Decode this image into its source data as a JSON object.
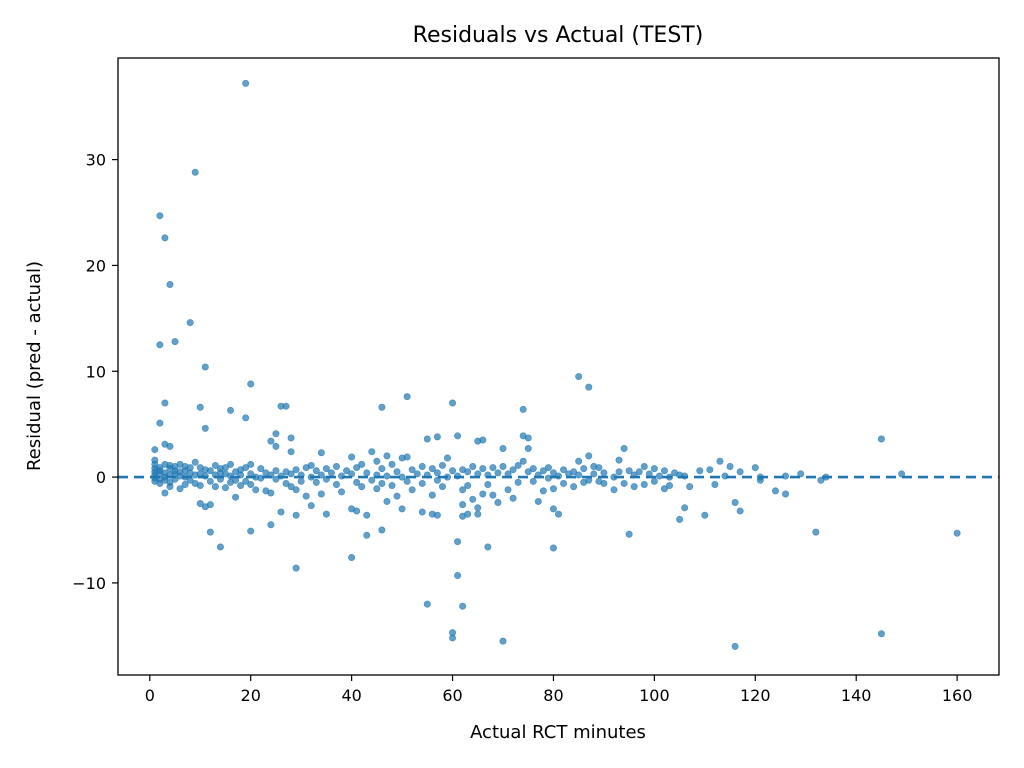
{
  "chart_data": {
    "type": "scatter",
    "title": "Residuals vs Actual (TEST)",
    "xlabel": "Actual RCT minutes",
    "ylabel": "Residual (pred - actual)",
    "xlim": [
      -6.3,
      168.3
    ],
    "ylim": [
      -18.7,
      39.6
    ],
    "xticks": [
      0,
      20,
      40,
      60,
      80,
      100,
      120,
      140,
      160
    ],
    "xtick_labels": [
      "0",
      "20",
      "40",
      "60",
      "80",
      "100",
      "120",
      "140",
      "160"
    ],
    "yticks": [
      -10,
      0,
      10,
      20,
      30
    ],
    "ytick_labels": [
      "−10",
      "0",
      "10",
      "20",
      "30"
    ],
    "grid": false,
    "reference_line": {
      "y": 0,
      "style": "dashed"
    },
    "colors": {
      "points": "#1f77b4",
      "reference_line": "#1f77b4"
    },
    "series": [
      {
        "points": [
          [
            1,
            1.2
          ],
          [
            1,
            0.8
          ],
          [
            1,
            0.5
          ],
          [
            1,
            0.2
          ],
          [
            1,
            -0.1
          ],
          [
            1,
            -0.4
          ],
          [
            1,
            2.6
          ],
          [
            1,
            1.6
          ],
          [
            2,
            0.9
          ],
          [
            2,
            0.3
          ],
          [
            2,
            -0.2
          ],
          [
            2,
            0.6
          ],
          [
            2,
            -0.6
          ],
          [
            2,
            12.5
          ],
          [
            2,
            24.7
          ],
          [
            2,
            5.1
          ],
          [
            3,
            22.6
          ],
          [
            3,
            7.0
          ],
          [
            3,
            3.1
          ],
          [
            3,
            0.4
          ],
          [
            3,
            -0.3
          ],
          [
            3,
            1.2
          ],
          [
            3,
            -1.5
          ],
          [
            3,
            0.0
          ],
          [
            4,
            18.2
          ],
          [
            4,
            2.9
          ],
          [
            4,
            0.8
          ],
          [
            4,
            -0.5
          ],
          [
            4,
            0.2
          ],
          [
            4,
            1.1
          ],
          [
            4,
            -0.9
          ],
          [
            5,
            12.8
          ],
          [
            5,
            0.3
          ],
          [
            5,
            1.0
          ],
          [
            5,
            -0.2
          ],
          [
            5,
            0.6
          ],
          [
            6,
            0.5
          ],
          [
            6,
            -1.1
          ],
          [
            6,
            0.1
          ],
          [
            6,
            1.2
          ],
          [
            7,
            0.0
          ],
          [
            7,
            -0.7
          ],
          [
            7,
            0.6
          ],
          [
            7,
            1.0
          ],
          [
            8,
            14.6
          ],
          [
            8,
            0.4
          ],
          [
            8,
            -0.3
          ],
          [
            8,
            0.9
          ],
          [
            9,
            28.8
          ],
          [
            9,
            1.4
          ],
          [
            9,
            -0.6
          ],
          [
            9,
            0.2
          ],
          [
            10,
            6.6
          ],
          [
            10,
            -2.5
          ],
          [
            10,
            0.3
          ],
          [
            10,
            -0.8
          ],
          [
            10,
            0.9
          ],
          [
            11,
            10.4
          ],
          [
            11,
            4.6
          ],
          [
            11,
            -2.8
          ],
          [
            11,
            0.1
          ],
          [
            11,
            0.7
          ],
          [
            12,
            -5.2
          ],
          [
            12,
            -2.6
          ],
          [
            12,
            -0.4
          ],
          [
            12,
            0.6
          ],
          [
            13,
            0.2
          ],
          [
            13,
            -0.9
          ],
          [
            13,
            1.1
          ],
          [
            14,
            -6.6
          ],
          [
            14,
            0.4
          ],
          [
            14,
            -0.2
          ],
          [
            14,
            0.8
          ],
          [
            15,
            -1.0
          ],
          [
            15,
            0.3
          ],
          [
            15,
            0.9
          ],
          [
            16,
            6.3
          ],
          [
            16,
            1.2
          ],
          [
            16,
            -0.5
          ],
          [
            16,
            0.1
          ],
          [
            17,
            -1.9
          ],
          [
            17,
            0.5
          ],
          [
            17,
            -0.3
          ],
          [
            18,
            0.7
          ],
          [
            18,
            -0.8
          ],
          [
            18,
            0.2
          ],
          [
            19,
            37.2
          ],
          [
            19,
            5.6
          ],
          [
            19,
            0.9
          ],
          [
            19,
            -0.4
          ],
          [
            20,
            8.8
          ],
          [
            20,
            1.2
          ],
          [
            20,
            -5.1
          ],
          [
            20,
            0.3
          ],
          [
            20,
            -0.7
          ],
          [
            21,
            0.0
          ],
          [
            21,
            -1.2
          ],
          [
            22,
            0.8
          ],
          [
            22,
            -0.1
          ],
          [
            23,
            0.4
          ],
          [
            23,
            -1.3
          ],
          [
            24,
            3.4
          ],
          [
            24,
            -4.5
          ],
          [
            24,
            -1.5
          ],
          [
            24,
            0.2
          ],
          [
            25,
            4.1
          ],
          [
            25,
            2.9
          ],
          [
            25,
            0.6
          ],
          [
            25,
            -0.2
          ],
          [
            26,
            6.7
          ],
          [
            26,
            -3.3
          ],
          [
            26,
            0.1
          ],
          [
            27,
            6.7
          ],
          [
            27,
            0.5
          ],
          [
            27,
            -0.6
          ],
          [
            28,
            3.7
          ],
          [
            28,
            2.4
          ],
          [
            28,
            -0.9
          ],
          [
            28,
            0.3
          ],
          [
            29,
            -8.6
          ],
          [
            29,
            -3.6
          ],
          [
            29,
            -1.2
          ],
          [
            29,
            0.7
          ],
          [
            30,
            0.2
          ],
          [
            30,
            -0.4
          ],
          [
            31,
            0.9
          ],
          [
            31,
            -1.8
          ],
          [
            32,
            1.1
          ],
          [
            32,
            -2.7
          ],
          [
            32,
            0.0
          ],
          [
            33,
            -0.5
          ],
          [
            33,
            0.6
          ],
          [
            34,
            2.3
          ],
          [
            34,
            -1.6
          ],
          [
            34,
            0.2
          ],
          [
            35,
            -3.5
          ],
          [
            35,
            0.8
          ],
          [
            35,
            -0.2
          ],
          [
            36,
            0.4
          ],
          [
            37,
            1.0
          ],
          [
            37,
            -0.7
          ],
          [
            38,
            0.1
          ],
          [
            38,
            -1.4
          ],
          [
            39,
            0.6
          ],
          [
            40,
            -3.0
          ],
          [
            40,
            -7.6
          ],
          [
            40,
            1.9
          ],
          [
            40,
            0.3
          ],
          [
            41,
            -3.2
          ],
          [
            41,
            0.9
          ],
          [
            41,
            -0.5
          ],
          [
            42,
            1.2
          ],
          [
            42,
            -0.9
          ],
          [
            43,
            -3.6
          ],
          [
            43,
            -5.5
          ],
          [
            43,
            0.4
          ],
          [
            44,
            2.4
          ],
          [
            44,
            -0.3
          ],
          [
            45,
            1.5
          ],
          [
            45,
            0.2
          ],
          [
            45,
            -1.1
          ],
          [
            46,
            6.6
          ],
          [
            46,
            -5.0
          ],
          [
            46,
            0.8
          ],
          [
            46,
            -0.6
          ],
          [
            47,
            2.0
          ],
          [
            47,
            0.1
          ],
          [
            47,
            -2.3
          ],
          [
            48,
            1.2
          ],
          [
            48,
            -0.8
          ],
          [
            49,
            -1.8
          ],
          [
            49,
            0.5
          ],
          [
            50,
            -3.0
          ],
          [
            50,
            1.8
          ],
          [
            50,
            0.0
          ],
          [
            51,
            7.6
          ],
          [
            51,
            1.9
          ],
          [
            51,
            -0.4
          ],
          [
            52,
            0.7
          ],
          [
            52,
            -1.2
          ],
          [
            53,
            0.3
          ],
          [
            54,
            -3.3
          ],
          [
            54,
            1.0
          ],
          [
            54,
            -0.6
          ],
          [
            55,
            3.6
          ],
          [
            55,
            -12.0
          ],
          [
            55,
            0.2
          ],
          [
            56,
            -3.5
          ],
          [
            56,
            0.8
          ],
          [
            56,
            -1.7
          ],
          [
            57,
            3.8
          ],
          [
            57,
            -3.6
          ],
          [
            57,
            0.4
          ],
          [
            57,
            -0.3
          ],
          [
            58,
            1.1
          ],
          [
            58,
            -0.9
          ],
          [
            59,
            1.8
          ],
          [
            59,
            0.0
          ],
          [
            60,
            7.0
          ],
          [
            60,
            -14.7
          ],
          [
            60,
            -15.2
          ],
          [
            60,
            0.6
          ],
          [
            61,
            3.9
          ],
          [
            61,
            -6.1
          ],
          [
            61,
            -9.3
          ],
          [
            61,
            0.1
          ],
          [
            62,
            -12.2
          ],
          [
            62,
            -3.7
          ],
          [
            62,
            -2.6
          ],
          [
            62,
            0.7
          ],
          [
            62,
            -1.2
          ],
          [
            63,
            -3.5
          ],
          [
            63,
            0.5
          ],
          [
            63,
            -0.8
          ],
          [
            64,
            -2.1
          ],
          [
            64,
            1.0
          ],
          [
            65,
            3.4
          ],
          [
            65,
            -2.9
          ],
          [
            65,
            -3.5
          ],
          [
            65,
            0.3
          ],
          [
            66,
            3.5
          ],
          [
            66,
            -1.6
          ],
          [
            66,
            0.8
          ],
          [
            67,
            -6.6
          ],
          [
            67,
            0.2
          ],
          [
            67,
            -0.7
          ],
          [
            68,
            -1.7
          ],
          [
            68,
            0.9
          ],
          [
            69,
            -2.4
          ],
          [
            69,
            0.4
          ],
          [
            70,
            -15.5
          ],
          [
            70,
            2.7
          ],
          [
            70,
            1.0
          ],
          [
            71,
            -1.2
          ],
          [
            71,
            0.3
          ],
          [
            72,
            -2.0
          ],
          [
            72,
            0.7
          ],
          [
            73,
            -0.5
          ],
          [
            73,
            1.1
          ],
          [
            74,
            6.4
          ],
          [
            74,
            3.9
          ],
          [
            74,
            1.5
          ],
          [
            75,
            3.7
          ],
          [
            75,
            2.7
          ],
          [
            75,
            0.5
          ],
          [
            76,
            0.8
          ],
          [
            76,
            -0.4
          ],
          [
            77,
            -2.3
          ],
          [
            77,
            0.2
          ],
          [
            78,
            -1.3
          ],
          [
            78,
            0.6
          ],
          [
            79,
            -0.1
          ],
          [
            79,
            0.9
          ],
          [
            80,
            -6.7
          ],
          [
            80,
            -3.0
          ],
          [
            80,
            -1.1
          ],
          [
            80,
            0.4
          ],
          [
            81,
            -3.5
          ],
          [
            81,
            0.1
          ],
          [
            82,
            0.7
          ],
          [
            82,
            -0.6
          ],
          [
            83,
            0.3
          ],
          [
            84,
            0.5
          ],
          [
            84,
            -0.9
          ],
          [
            85,
            9.5
          ],
          [
            85,
            1.5
          ],
          [
            85,
            0.2
          ],
          [
            86,
            0.8
          ],
          [
            86,
            -0.5
          ],
          [
            87,
            8.5
          ],
          [
            87,
            2.0
          ],
          [
            87,
            -0.3
          ],
          [
            88,
            1.0
          ],
          [
            88,
            0.3
          ],
          [
            89,
            -0.4
          ],
          [
            89,
            0.9
          ],
          [
            90,
            -0.6
          ],
          [
            90,
            0.4
          ],
          [
            92,
            0.0
          ],
          [
            92,
            -1.2
          ],
          [
            93,
            1.6
          ],
          [
            93,
            0.5
          ],
          [
            94,
            2.7
          ],
          [
            94,
            -0.6
          ],
          [
            95,
            -5.4
          ],
          [
            95,
            0.6
          ],
          [
            96,
            0.2
          ],
          [
            96,
            -0.9
          ],
          [
            97,
            0.5
          ],
          [
            98,
            1.0
          ],
          [
            98,
            -0.7
          ],
          [
            99,
            0.3
          ],
          [
            100,
            -0.4
          ],
          [
            100,
            0.8
          ],
          [
            101,
            0.1
          ],
          [
            102,
            -1.1
          ],
          [
            102,
            0.6
          ],
          [
            103,
            0.0
          ],
          [
            103,
            -0.8
          ],
          [
            104,
            0.4
          ],
          [
            105,
            -4.0
          ],
          [
            105,
            0.2
          ],
          [
            106,
            -2.9
          ],
          [
            106,
            0.1
          ],
          [
            107,
            -0.9
          ],
          [
            109,
            0.6
          ],
          [
            110,
            -3.6
          ],
          [
            111,
            0.7
          ],
          [
            112,
            -0.7
          ],
          [
            113,
            1.5
          ],
          [
            114,
            0.1
          ],
          [
            115,
            1.0
          ],
          [
            116,
            -2.4
          ],
          [
            116,
            -16.0
          ],
          [
            117,
            -3.2
          ],
          [
            117,
            0.5
          ],
          [
            120,
            0.9
          ],
          [
            121,
            0.0
          ],
          [
            121,
            -0.3
          ],
          [
            124,
            -1.3
          ],
          [
            126,
            0.1
          ],
          [
            126,
            -1.6
          ],
          [
            129,
            0.3
          ],
          [
            132,
            -5.2
          ],
          [
            133,
            -0.3
          ],
          [
            134,
            0.0
          ],
          [
            145,
            3.6
          ],
          [
            145,
            -14.8
          ],
          [
            149,
            0.3
          ],
          [
            160,
            -5.3
          ]
        ]
      }
    ]
  }
}
